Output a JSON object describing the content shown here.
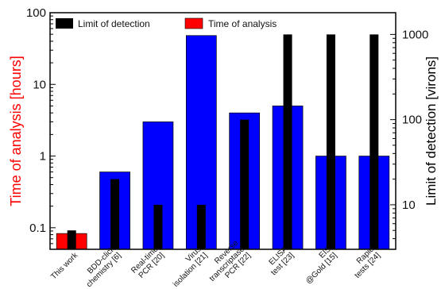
{
  "chart_data": {
    "type": "bar",
    "categories": [
      [
        "This work"
      ],
      [
        "BDD-click",
        "chemistry [6]"
      ],
      [
        "Real-time",
        "PCR [20]"
      ],
      [
        "Virus",
        "isolation [21]"
      ],
      [
        "Reverse",
        "transcriptase",
        "PCR [22]"
      ],
      [
        "ELISA",
        "test [23]"
      ],
      [
        "EIS",
        "@Gold [15]"
      ],
      [
        "Rapid",
        "tests [24]"
      ]
    ],
    "series": [
      {
        "name": "Time of analysis",
        "axis": "left",
        "unit": "hours",
        "values": [
          0.083,
          0.6,
          3,
          48,
          4,
          5,
          1,
          1
        ]
      },
      {
        "name": "Limit of detection",
        "axis": "right",
        "unit": "virons",
        "values": [
          5,
          20,
          10,
          10,
          100,
          1000,
          1000,
          1000
        ]
      }
    ],
    "left_axis": {
      "label": "Time of analysis [hours]",
      "scale": "log",
      "ylim": [
        0.05,
        100
      ],
      "ticks": [
        0.1,
        1,
        10,
        100
      ],
      "tick_labels": [
        "0.1",
        "1",
        "10",
        "100"
      ],
      "color": "#ff0000"
    },
    "right_axis": {
      "label": "Limit of detection [virons]",
      "scale": "log",
      "ylim": [
        3,
        1800
      ],
      "ticks": [
        10,
        100,
        1000
      ],
      "tick_labels": [
        "10",
        "100",
        "1000"
      ],
      "color": "#000000"
    },
    "legend": {
      "placement": "top-left",
      "entries": [
        "Limit of detection",
        "Time of analysis"
      ]
    },
    "colors": {
      "time_this_work": "#ff0000",
      "time_others": "#0000ff",
      "limit": "#000000"
    },
    "grid": false
  }
}
